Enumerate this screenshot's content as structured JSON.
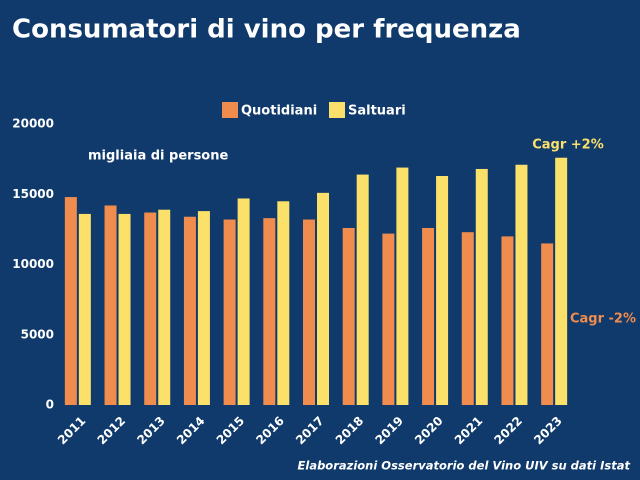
{
  "chart_data": {
    "type": "bar",
    "title": "Consumatori di vino per frequenza",
    "subtitle": "migliaia di persone",
    "source": "Elaborazioni Osservatorio del Vino UIV su dati Istat",
    "categories": [
      "2011",
      "2012",
      "2013",
      "2014",
      "2015",
      "2016",
      "2017",
      "2018",
      "2019",
      "2020",
      "2021",
      "2022",
      "2023"
    ],
    "series": [
      {
        "name": "Quotidiani",
        "color": "#f08c4e",
        "values": [
          14800,
          14200,
          13700,
          13400,
          13200,
          13300,
          13200,
          12600,
          12200,
          12600,
          12300,
          12000,
          11500
        ]
      },
      {
        "name": "Saltuari",
        "color": "#fbe06a",
        "values": [
          13600,
          13600,
          13900,
          13800,
          14700,
          14500,
          15100,
          16400,
          16900,
          16300,
          16800,
          17100,
          17600
        ]
      }
    ],
    "annotations": [
      {
        "text": "Cagr +2%",
        "color": "#fbe06a"
      },
      {
        "text": "Cagr -2%",
        "color": "#f08c4e"
      }
    ],
    "ylim": [
      0,
      20000
    ],
    "yticks": [
      0,
      5000,
      10000,
      15000,
      20000
    ],
    "grid": false,
    "legend": "top"
  }
}
